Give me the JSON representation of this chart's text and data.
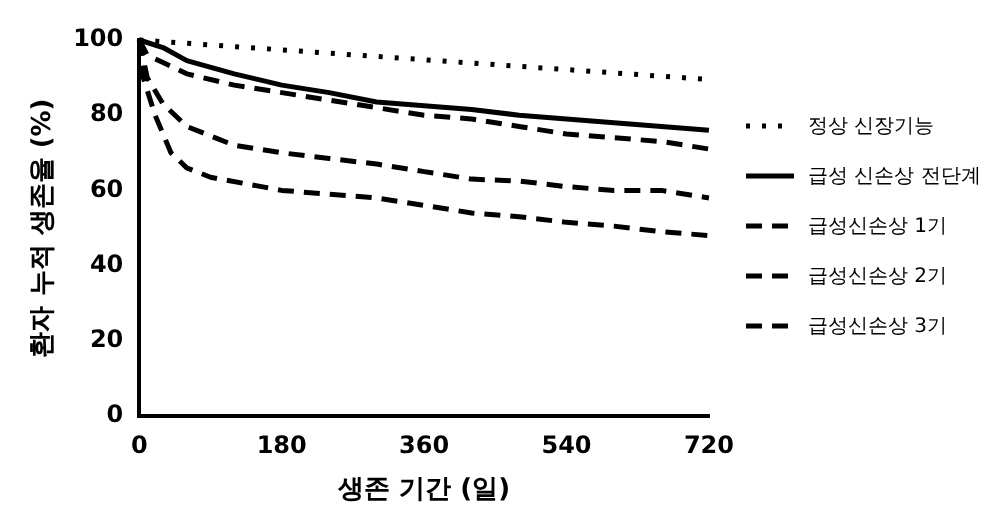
{
  "chart_data": {
    "type": "line",
    "xlabel": "생존 기간 (일)",
    "ylabel": "환자 누적 생존율 (%)",
    "xlim": [
      0,
      720
    ],
    "xticks": [
      0,
      180,
      360,
      540,
      720
    ],
    "ylim": [
      0,
      100
    ],
    "yticks": [
      0,
      20,
      40,
      60,
      80,
      100
    ],
    "grid": false,
    "legend": "right",
    "marker": "none",
    "series": [
      {
        "name": "정상 신장기능",
        "color": "#000000",
        "line_style": "dotted",
        "x": [
          0,
          720
        ],
        "values": [
          100,
          89.5
        ]
      },
      {
        "name": "급성 신손상 전단계",
        "color": "#000000",
        "line_style": "solid",
        "x": [
          0,
          30,
          60,
          120,
          180,
          240,
          300,
          360,
          420,
          480,
          540,
          600,
          660,
          720
        ],
        "values": [
          100,
          98,
          94.5,
          91,
          88,
          86,
          83.5,
          82.5,
          81.5,
          80,
          79,
          78,
          77,
          76
        ]
      },
      {
        "name": "급성신손상 1기",
        "color": "#000000",
        "line_style": "dashed",
        "x": [
          0,
          10,
          30,
          60,
          120,
          180,
          240,
          300,
          360,
          420,
          480,
          540,
          600,
          660,
          720
        ],
        "values": [
          100,
          96,
          94,
          91,
          88,
          86,
          84,
          82,
          80,
          79,
          77,
          75,
          74,
          73,
          71
        ]
      },
      {
        "name": "급성신손상 2기",
        "color": "#000000",
        "line_style": "dashed",
        "x": [
          0,
          10,
          30,
          60,
          120,
          180,
          240,
          300,
          360,
          420,
          480,
          540,
          600,
          660,
          720
        ],
        "values": [
          100,
          90,
          83,
          77,
          72,
          70,
          68.5,
          67,
          65,
          63,
          62.5,
          61,
          60,
          60,
          58
        ]
      },
      {
        "name": "급성신손상 3기",
        "color": "#000000",
        "line_style": "dashed",
        "x": [
          0,
          5,
          20,
          40,
          60,
          90,
          180,
          240,
          300,
          360,
          420,
          480,
          540,
          600,
          660,
          720
        ],
        "values": [
          100,
          90,
          80,
          70,
          66,
          63.5,
          60,
          59,
          58,
          56,
          54,
          53,
          51.5,
          50.5,
          49,
          48
        ]
      }
    ]
  }
}
